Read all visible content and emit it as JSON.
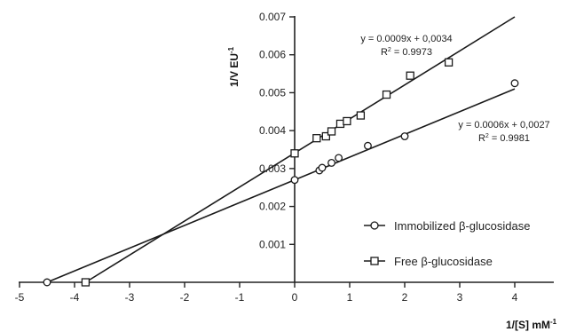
{
  "chart_data": {
    "type": "scatter",
    "title": "",
    "xlabel": "1/[S] mM",
    "xlabel_sup": "-1",
    "ylabel": "1/V EU",
    "ylabel_sup": "-1",
    "xlim": [
      -5,
      4.5
    ],
    "ylim": [
      0,
      0.007
    ],
    "x_ticks": [
      -5,
      -4,
      -3,
      -2,
      -1,
      0,
      1,
      2,
      3,
      4
    ],
    "y_ticks": [
      0.001,
      0.002,
      0.003,
      0.004,
      0.005,
      0.006,
      0.007
    ],
    "y_tick_labels": [
      "0.001",
      "0.002",
      "0.003",
      "0.004",
      "0.005",
      "0.006",
      "0.007"
    ],
    "grid": false,
    "legend_position": "bottom-right",
    "series": [
      {
        "name": "Immobilized β-glucosidase",
        "marker": "circle",
        "points": [
          {
            "x": -4.5,
            "y": 0.0
          },
          {
            "x": 0.0,
            "y": 0.0027
          },
          {
            "x": 0.45,
            "y": 0.00295
          },
          {
            "x": 0.5,
            "y": 0.00302
          },
          {
            "x": 0.67,
            "y": 0.00315
          },
          {
            "x": 0.8,
            "y": 0.00328
          },
          {
            "x": 1.33,
            "y": 0.0036
          },
          {
            "x": 2.0,
            "y": 0.00385
          },
          {
            "x": 4.0,
            "y": 0.00525
          }
        ],
        "fit": {
          "slope": 0.0006,
          "intercept": 0.0027,
          "x_range": [
            -4.5,
            4.0
          ]
        },
        "equation": "y = 0.0006x + 0,0027",
        "r2_label": "R",
        "r2_sup": "2",
        "r2_value": " = 0.9981"
      },
      {
        "name": "Free β-glucosidase",
        "marker": "square",
        "points": [
          {
            "x": -3.8,
            "y": 0.0
          },
          {
            "x": 0.0,
            "y": 0.0034
          },
          {
            "x": 0.4,
            "y": 0.0038
          },
          {
            "x": 0.57,
            "y": 0.00385
          },
          {
            "x": 0.67,
            "y": 0.00398
          },
          {
            "x": 0.83,
            "y": 0.00418
          },
          {
            "x": 0.95,
            "y": 0.00425
          },
          {
            "x": 1.2,
            "y": 0.0044
          },
          {
            "x": 1.67,
            "y": 0.00495
          },
          {
            "x": 2.1,
            "y": 0.00545
          },
          {
            "x": 2.8,
            "y": 0.0058
          }
        ],
        "fit": {
          "slope": 0.0009,
          "intercept": 0.0034,
          "x_range": [
            -3.8,
            4.0
          ]
        },
        "equation": "y = 0.0009x + 0,0034",
        "r2_label": "R",
        "r2_sup": "2",
        "r2_value": " = 0.9973"
      }
    ]
  }
}
